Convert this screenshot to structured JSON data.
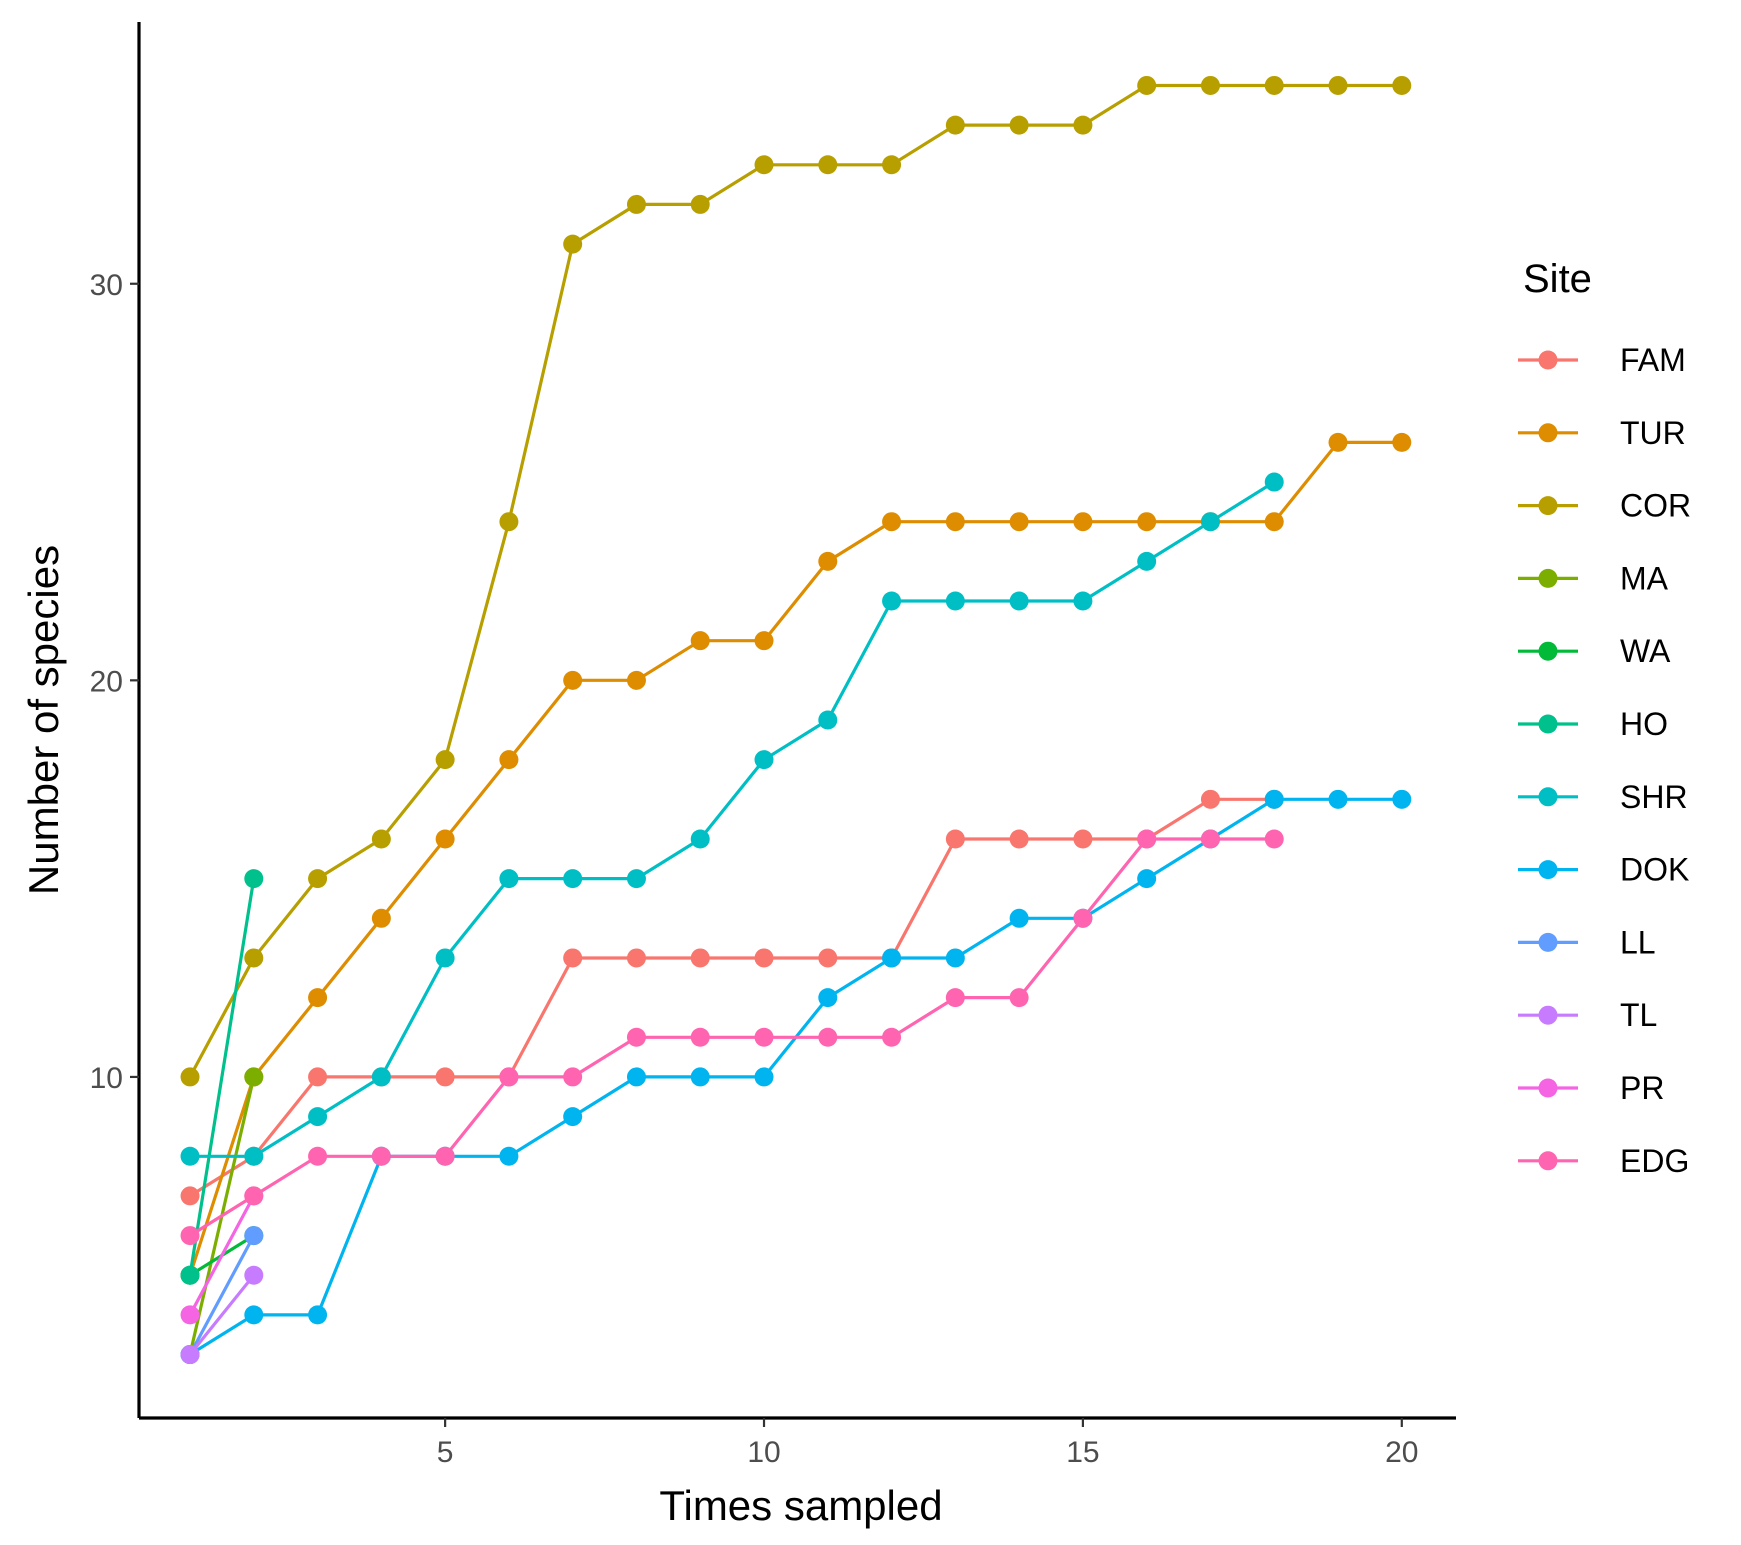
{
  "chart_data": {
    "type": "line",
    "title": "",
    "xlabel": "Times sampled",
    "ylabel": "Number of species",
    "xlim": [
      0.2,
      20.85
    ],
    "ylim": [
      1.4,
      36.6
    ],
    "xticks": [
      5,
      10,
      15,
      20
    ],
    "yticks": [
      10,
      20,
      30
    ],
    "grid": false,
    "legend": {
      "title": "Site",
      "position": "right"
    },
    "series": [
      {
        "name": "FAM",
        "color": "#F8766D",
        "x": [
          1,
          2,
          3,
          4,
          5,
          6,
          7,
          8,
          9,
          10,
          11,
          12,
          13,
          14,
          15,
          16,
          17,
          18
        ],
        "y": [
          7,
          8,
          10,
          10,
          10,
          10,
          13,
          13,
          13,
          13,
          13,
          13,
          16,
          16,
          16,
          16,
          17,
          17
        ]
      },
      {
        "name": "TUR",
        "color": "#DE8C00",
        "x": [
          1,
          2,
          3,
          4,
          5,
          6,
          7,
          8,
          9,
          10,
          11,
          12,
          13,
          14,
          15,
          16,
          17,
          18,
          19,
          20
        ],
        "y": [
          5,
          10,
          12,
          14,
          16,
          18,
          20,
          20,
          21,
          21,
          23,
          24,
          24,
          24,
          24,
          24,
          24,
          24,
          26,
          26
        ]
      },
      {
        "name": "COR",
        "color": "#B79F00",
        "x": [
          1,
          2,
          3,
          4,
          5,
          6,
          7,
          8,
          9,
          10,
          11,
          12,
          13,
          14,
          15,
          16,
          17,
          18,
          19,
          20
        ],
        "y": [
          10,
          13,
          15,
          16,
          18,
          24,
          31,
          32,
          32,
          33,
          33,
          33,
          34,
          34,
          34,
          35,
          35,
          35,
          35,
          35
        ]
      },
      {
        "name": "MA",
        "color": "#7CAE00",
        "x": [
          1,
          2
        ],
        "y": [
          3,
          10
        ]
      },
      {
        "name": "WA",
        "color": "#00BA38",
        "x": [
          1,
          2
        ],
        "y": [
          5,
          6
        ]
      },
      {
        "name": "HO",
        "color": "#00C08B",
        "x": [
          1,
          2
        ],
        "y": [
          5,
          15
        ]
      },
      {
        "name": "SHR",
        "color": "#00BFC4",
        "x": [
          1,
          2,
          3,
          4,
          5,
          6,
          7,
          8,
          9,
          10,
          11,
          12,
          13,
          14,
          15,
          16,
          17,
          18
        ],
        "y": [
          8,
          8,
          9,
          10,
          13,
          15,
          15,
          15,
          16,
          18,
          19,
          22,
          22,
          22,
          22,
          23,
          24,
          25
        ]
      },
      {
        "name": "DOK",
        "color": "#00B4F0",
        "x": [
          1,
          2,
          3,
          4,
          5,
          6,
          7,
          8,
          9,
          10,
          11,
          12,
          13,
          14,
          15,
          16,
          17,
          18,
          19,
          20
        ],
        "y": [
          3,
          4,
          4,
          8,
          8,
          8,
          9,
          10,
          10,
          10,
          12,
          13,
          13,
          14,
          14,
          15,
          16,
          17,
          17,
          17
        ]
      },
      {
        "name": "LL",
        "color": "#619CFF",
        "x": [
          1,
          2
        ],
        "y": [
          3,
          6
        ]
      },
      {
        "name": "TL",
        "color": "#C77CFF",
        "x": [
          1,
          2
        ],
        "y": [
          3,
          5
        ]
      },
      {
        "name": "PR",
        "color": "#F564E3",
        "x": [
          1,
          2
        ],
        "y": [
          4,
          7
        ]
      },
      {
        "name": "EDG",
        "color": "#FF64B0",
        "x": [
          1,
          2,
          3,
          4,
          5,
          6,
          7,
          8,
          9,
          10,
          11,
          12,
          13,
          14,
          15,
          16,
          17,
          18
        ],
        "y": [
          6,
          7,
          8,
          8,
          8,
          10,
          10,
          11,
          11,
          11,
          11,
          11,
          12,
          12,
          14,
          16,
          16,
          16
        ]
      }
    ]
  }
}
